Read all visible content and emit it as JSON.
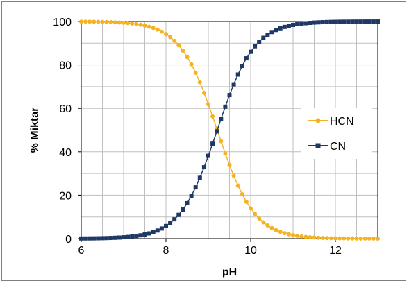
{
  "chart_data": {
    "type": "line",
    "title": "",
    "xlabel": "pH",
    "ylabel": "% Miktar",
    "xlim": [
      6,
      13
    ],
    "ylim": [
      0,
      100
    ],
    "x_ticks": [
      "6",
      "8",
      "10",
      "12"
    ],
    "x_tick_values": [
      6,
      8,
      10,
      12
    ],
    "y_ticks": [
      "0",
      "20",
      "40",
      "60",
      "80",
      "100"
    ],
    "y_tick_values": [
      0,
      20,
      40,
      60,
      80,
      100
    ],
    "x_minor_step": 0.5,
    "y_minor_step": 10,
    "grid": true,
    "legend_position": "right",
    "pKa": 9.21,
    "x_start": 6,
    "x_end": 13,
    "x_step": 0.1,
    "series": [
      {
        "name": "HCN",
        "color": "#F5B324",
        "marker": "circle",
        "formula": "100/(1+10^(x-pKa))"
      },
      {
        "name": "CN",
        "color": "#1F3864",
        "marker": "square",
        "formula": "100/(1+10^(pKa-x))"
      }
    ]
  }
}
